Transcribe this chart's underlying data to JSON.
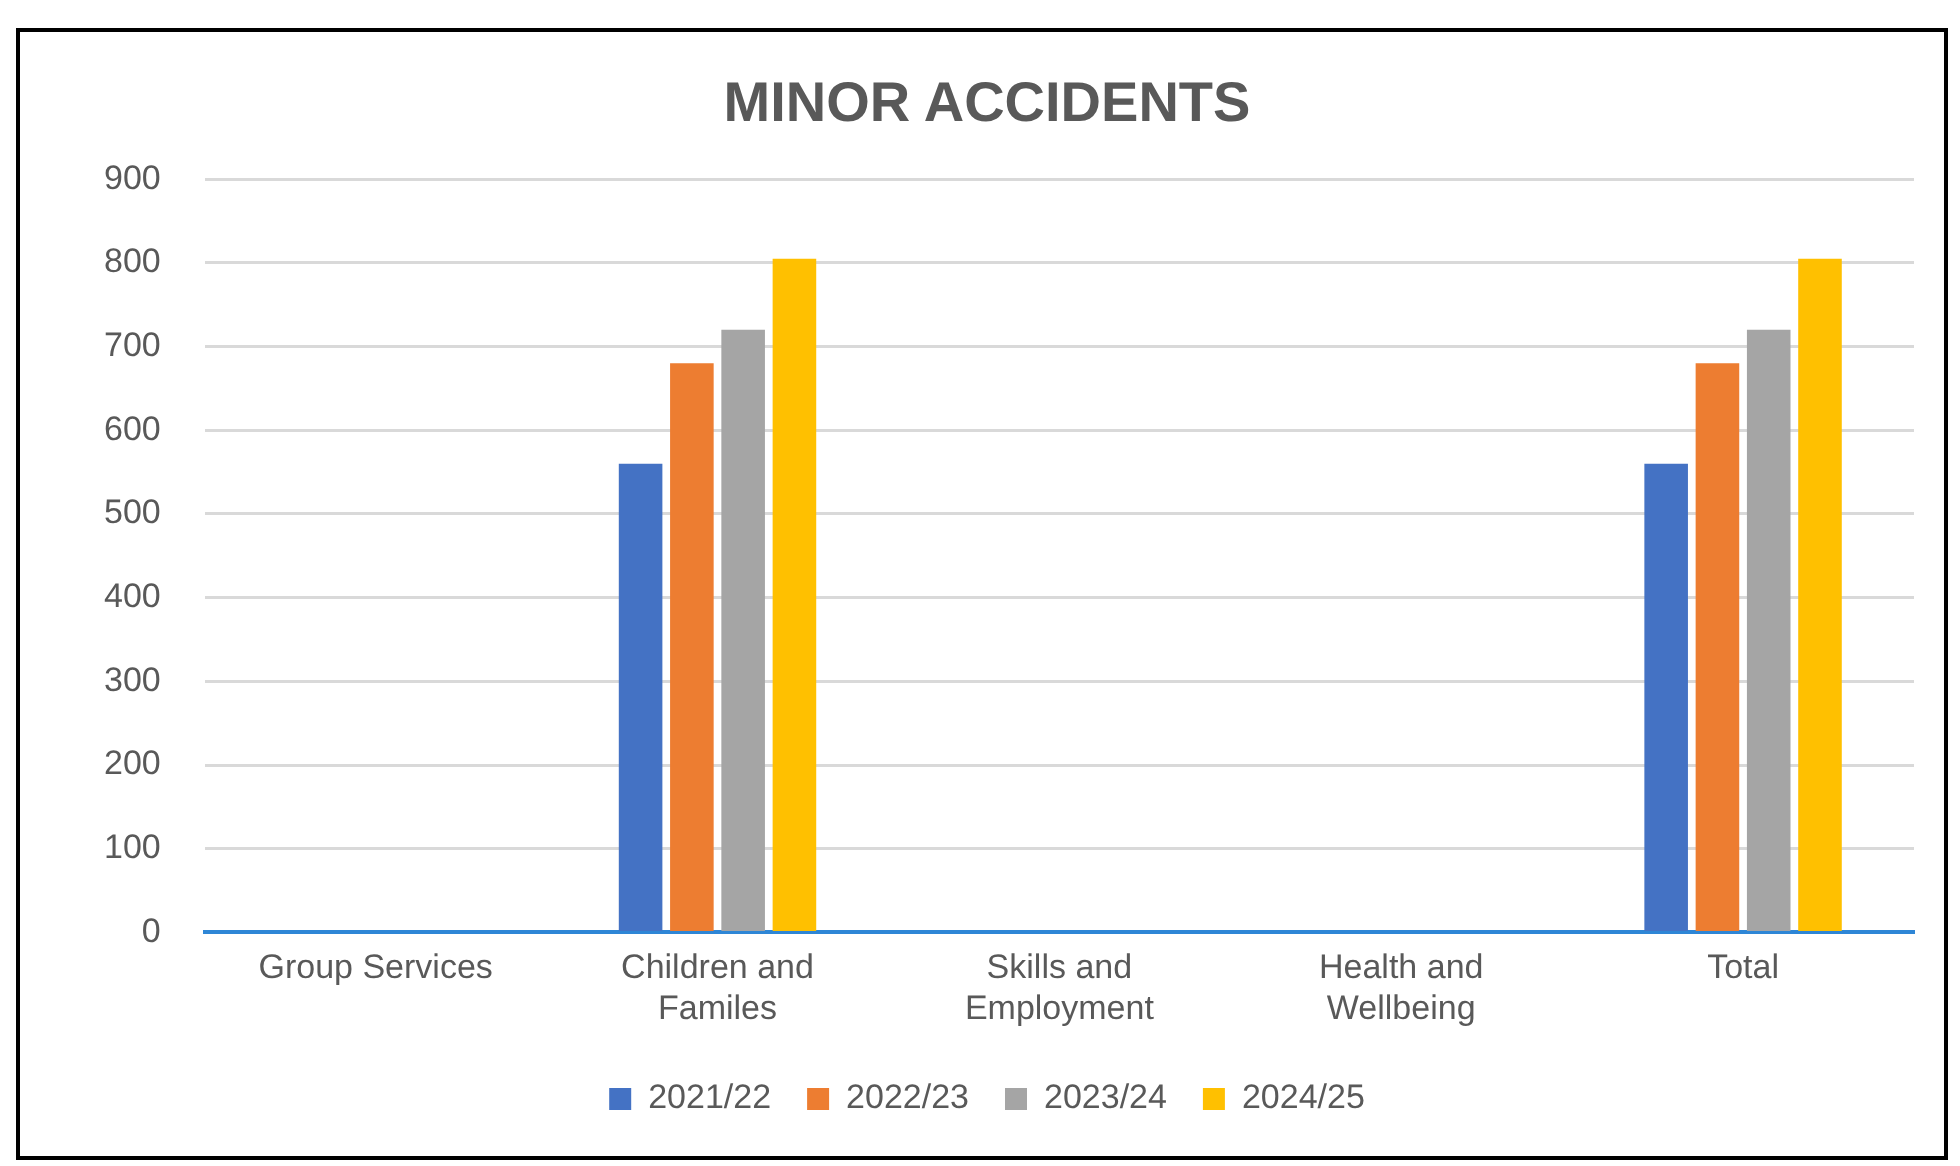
{
  "chart_data": {
    "type": "bar",
    "title": "MINOR ACCIDENTS",
    "categories": [
      "Group Services",
      "Children and Familes",
      "Skills and Employment",
      "Health and Wellbeing",
      "Total"
    ],
    "series": [
      {
        "name": "2021/22",
        "color": "#4472c4",
        "values": [
          0,
          560,
          0,
          0,
          560
        ]
      },
      {
        "name": "2022/23",
        "color": "#ed7d31",
        "values": [
          0,
          680,
          0,
          0,
          680
        ]
      },
      {
        "name": "2023/24",
        "color": "#a5a5a5",
        "values": [
          0,
          720,
          0,
          0,
          720
        ]
      },
      {
        "name": "2024/25",
        "color": "#ffc000",
        "values": [
          0,
          805,
          0,
          0,
          805
        ]
      }
    ],
    "ylim": [
      0,
      900
    ],
    "yticks": [
      0,
      100,
      200,
      300,
      400,
      500,
      600,
      700,
      800,
      900
    ],
    "grid": "y",
    "legend": "bottom"
  }
}
